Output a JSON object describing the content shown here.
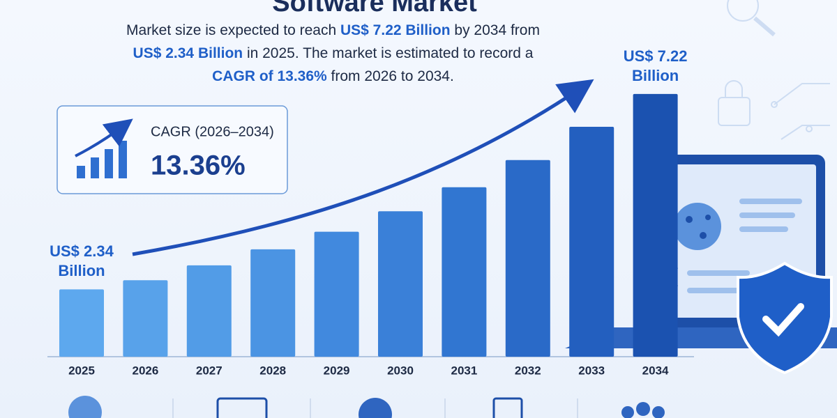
{
  "chart_data": {
    "type": "bar",
    "title": "Software Market",
    "description": [
      [
        {
          "text": "Market size is expected to reach ",
          "bold": false
        },
        {
          "text": "US$ 7.22 Billion",
          "bold": true
        },
        {
          "text": " by 2034 from",
          "bold": false
        }
      ],
      [
        {
          "text": "US$ 2.34 Billion",
          "bold": true
        },
        {
          "text": " in 2025. The market is estimated to record a",
          "bold": false
        }
      ],
      [
        {
          "text": "CAGR of 13.36%",
          "bold": true
        },
        {
          "text": " from 2026 to 2034.",
          "bold": false
        }
      ]
    ],
    "cagr_label": "CAGR (2026–2034)",
    "cagr_value": "13.36%",
    "categories": [
      "2025",
      "2026",
      "2027",
      "2028",
      "2029",
      "2030",
      "2031",
      "2032",
      "2033",
      "2034"
    ],
    "values": [
      2.34,
      2.57,
      2.94,
      3.34,
      3.78,
      4.29,
      4.89,
      5.57,
      6.4,
      7.22
    ],
    "value_labels": [
      "US$ 2.34 Billion",
      null,
      null,
      null,
      null,
      null,
      null,
      null,
      null,
      "US$ 7.22 Billion"
    ],
    "colors": [
      "#5da8ee",
      "#58a2ea",
      "#529ce7",
      "#4b94e3",
      "#4189de",
      "#3a80d8",
      "#3176d1",
      "#2a6ac8",
      "#235fbf",
      "#1b52b0"
    ],
    "ylim": [
      0.66,
      8
    ]
  }
}
